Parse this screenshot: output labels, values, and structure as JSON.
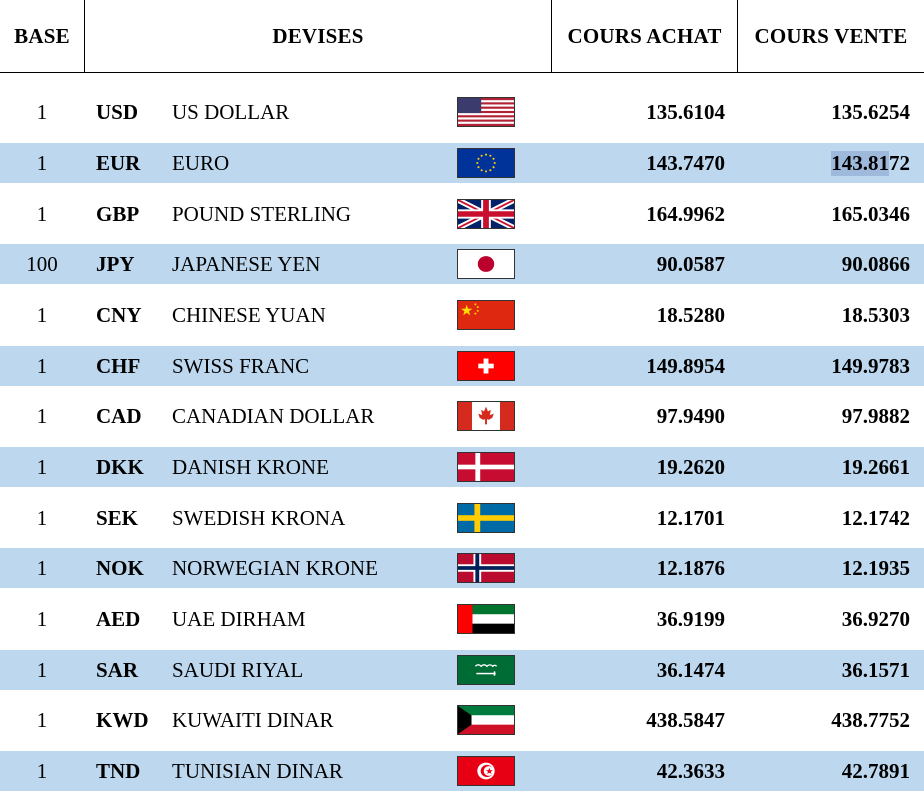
{
  "headers": {
    "base": "BASE",
    "devises": "DEVISES",
    "achat": "COURS ACHAT",
    "vente": "COURS VENTE"
  },
  "rows": [
    {
      "base": "1",
      "code": "USD",
      "name": "US DOLLAR",
      "flag": "us-flag-icon",
      "buy": "135.6104",
      "sell": "135.6254"
    },
    {
      "base": "1",
      "code": "EUR",
      "name": "EURO",
      "flag": "eu-flag-icon",
      "buy": "143.7470",
      "sell_pre": "143.81",
      "sell_post": "72"
    },
    {
      "base": "1",
      "code": "GBP",
      "name": "POUND STERLING",
      "flag": "uk-flag-icon",
      "buy": "164.9962",
      "sell": "165.0346"
    },
    {
      "base": "100",
      "code": "JPY",
      "name": "JAPANESE YEN",
      "flag": "japan-flag-icon",
      "buy": "90.0587",
      "sell": "90.0866"
    },
    {
      "base": "1",
      "code": "CNY",
      "name": "CHINESE YUAN",
      "flag": "china-flag-icon",
      "buy": "18.5280",
      "sell": "18.5303"
    },
    {
      "base": "1",
      "code": "CHF",
      "name": "SWISS FRANC",
      "flag": "swiss-flag-icon",
      "buy": "149.8954",
      "sell": "149.9783"
    },
    {
      "base": "1",
      "code": "CAD",
      "name": "CANADIAN DOLLAR",
      "flag": "canada-flag-icon",
      "buy": "97.9490",
      "sell": "97.9882"
    },
    {
      "base": "1",
      "code": "DKK",
      "name": "DANISH KRONE",
      "flag": "denmark-flag-icon",
      "buy": "19.2620",
      "sell": "19.2661"
    },
    {
      "base": "1",
      "code": "SEK",
      "name": "SWEDISH KRONA",
      "flag": "sweden-flag-icon",
      "buy": "12.1701",
      "sell": "12.1742"
    },
    {
      "base": "1",
      "code": "NOK",
      "name": "NORWEGIAN KRONE",
      "flag": "norway-flag-icon",
      "buy": "12.1876",
      "sell": "12.1935"
    },
    {
      "base": "1",
      "code": "AED",
      "name": "UAE DIRHAM",
      "flag": "uae-flag-icon",
      "buy": "36.9199",
      "sell": "36.9270"
    },
    {
      "base": "1",
      "code": "SAR",
      "name": "SAUDI RIYAL",
      "flag": "saudi-flag-icon",
      "buy": "36.1474",
      "sell": "36.1571"
    },
    {
      "base": "1",
      "code": "KWD",
      "name": "KUWAITI DINAR",
      "flag": "kuwait-flag-icon",
      "buy": "438.5847",
      "sell": "438.7752"
    },
    {
      "base": "1",
      "code": "TND",
      "name": "TUNISIAN DINAR",
      "flag": "tunisia-flag-icon",
      "buy": "42.3633",
      "sell": "42.7891"
    }
  ],
  "colors": {
    "row_shade": "#bdd7ee",
    "text": "#000000"
  }
}
